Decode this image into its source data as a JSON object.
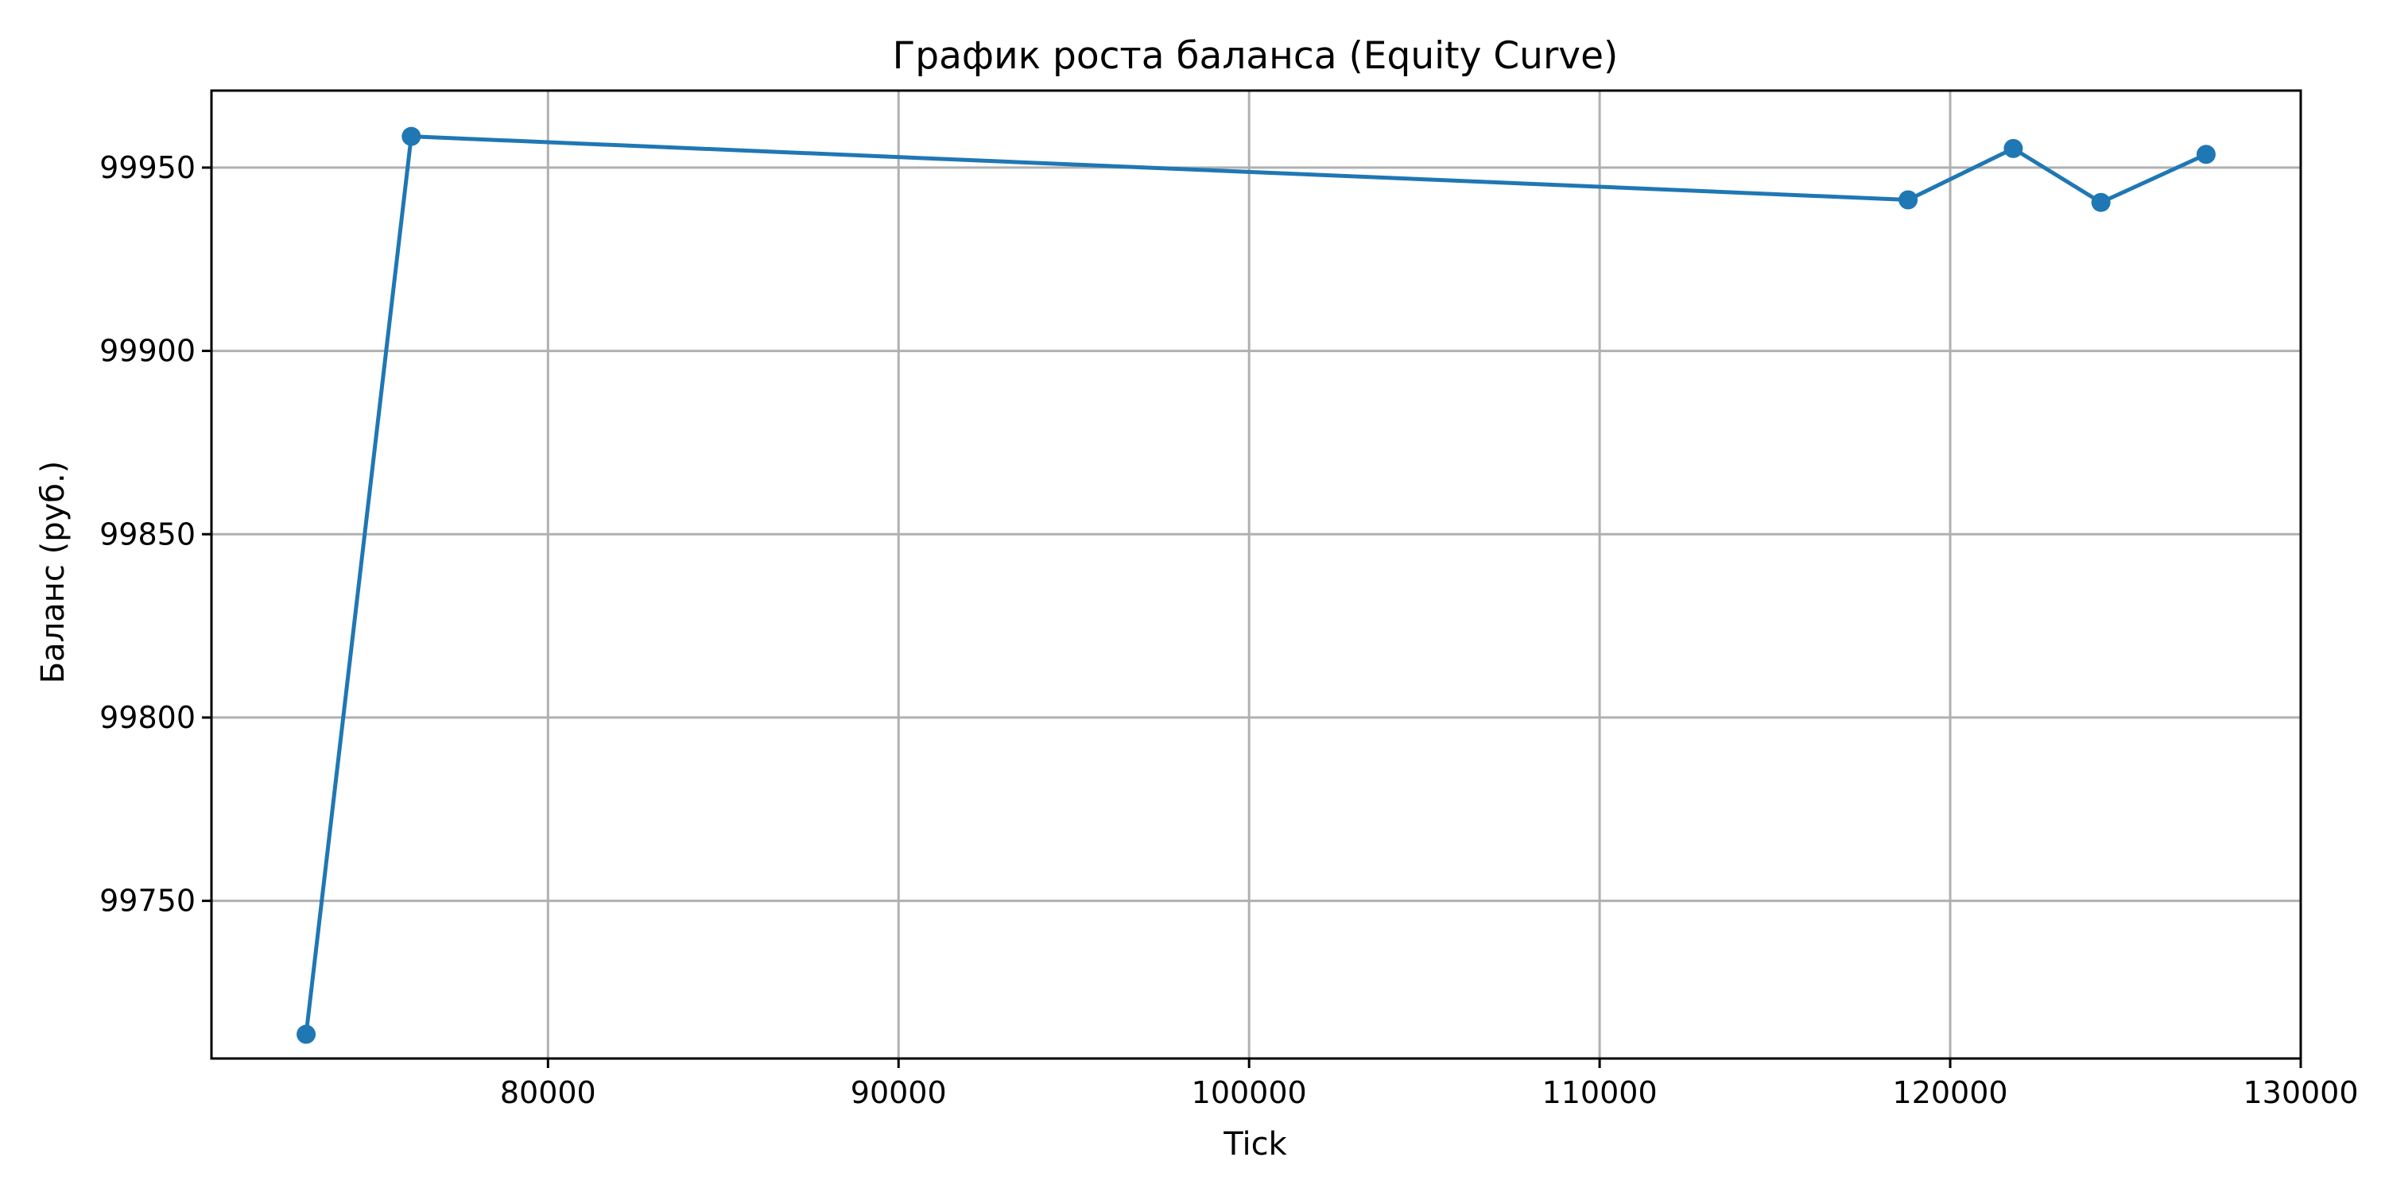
{
  "chart_data": {
    "type": "line",
    "title": "График роста баланса (Equity Curve)",
    "xlabel": "Tick",
    "ylabel": "Баланс (руб.)",
    "xlim": [
      70400,
      130000
    ],
    "ylim": [
      99707,
      99971
    ],
    "x_ticks": [
      80000,
      90000,
      100000,
      110000,
      120000,
      130000
    ],
    "y_ticks": [
      99750,
      99800,
      99850,
      99900,
      99950
    ],
    "grid": true,
    "legend": "none",
    "series": [
      {
        "color": "#1f77b4",
        "marker": "circle",
        "points": [
          {
            "x": 73100,
            "y": 99713.6
          },
          {
            "x": 76100,
            "y": 99958.5
          },
          {
            "x": 118800,
            "y": 99941.2
          },
          {
            "x": 121800,
            "y": 99955.2
          },
          {
            "x": 124300,
            "y": 99940.5
          },
          {
            "x": 127300,
            "y": 99953.6
          }
        ]
      }
    ]
  }
}
